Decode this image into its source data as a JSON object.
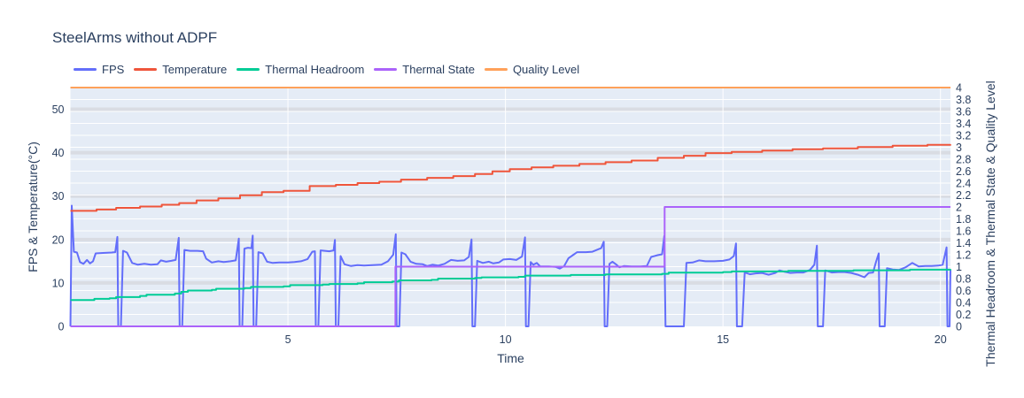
{
  "title": "SteelArms without ADPF",
  "chart_data": {
    "type": "line",
    "title": "SteelArms without ADPF",
    "xlabel": "Time",
    "ylabel_left": "FPS & Temperature(°C)",
    "ylabel_right": "Thermal Headroom & Thermal State & Quality Level",
    "x_range": [
      0,
      20.23
    ],
    "y_left_range": [
      0,
      55
    ],
    "y_right_range": [
      0,
      4
    ],
    "x_ticks": [
      5,
      10,
      15,
      20
    ],
    "y_left_ticks": [
      0,
      10,
      20,
      30,
      40,
      50
    ],
    "y_right_ticks": [
      0,
      0.2,
      0.4,
      0.6,
      0.8,
      1,
      1.2,
      1.4,
      1.6,
      1.8,
      2,
      2.2,
      2.4,
      2.6,
      2.8,
      3,
      3.2,
      3.4,
      3.6,
      3.8,
      4
    ],
    "grid": {
      "plot_bg": "#e5ecf6",
      "minor_line": "#ffffff",
      "major_line": "#d9dce3"
    },
    "legend_position": "top-left-horizontal",
    "series": [
      {
        "name": "FPS",
        "color": "#636efa",
        "axis": "left",
        "step": false,
        "points": [
          [
            0,
            0
          ],
          [
            0.03,
            27.8
          ],
          [
            0.08,
            17.2
          ],
          [
            0.15,
            17.0
          ],
          [
            0.22,
            14.8
          ],
          [
            0.3,
            14.4
          ],
          [
            0.38,
            15.3
          ],
          [
            0.45,
            14.5
          ],
          [
            0.52,
            15.0
          ],
          [
            0.58,
            16.8
          ],
          [
            0.75,
            16.9
          ],
          [
            0.95,
            17.0
          ],
          [
            1.03,
            17.1
          ],
          [
            1.08,
            20.6
          ],
          [
            1.1,
            0
          ],
          [
            1.16,
            0
          ],
          [
            1.21,
            17.4
          ],
          [
            1.3,
            17.0
          ],
          [
            1.42,
            14.6
          ],
          [
            1.55,
            14.2
          ],
          [
            1.7,
            14.4
          ],
          [
            1.85,
            14.2
          ],
          [
            2.0,
            14.3
          ],
          [
            2.08,
            15.2
          ],
          [
            2.2,
            14.9
          ],
          [
            2.32,
            15.1
          ],
          [
            2.42,
            15.3
          ],
          [
            2.49,
            20.4
          ],
          [
            2.51,
            0
          ],
          [
            2.57,
            0
          ],
          [
            2.62,
            17.6
          ],
          [
            2.75,
            17.4
          ],
          [
            2.92,
            17.4
          ],
          [
            3.05,
            17.3
          ],
          [
            3.12,
            15.6
          ],
          [
            3.25,
            14.7
          ],
          [
            3.4,
            15.0
          ],
          [
            3.52,
            14.8
          ],
          [
            3.68,
            15.0
          ],
          [
            3.8,
            15.2
          ],
          [
            3.87,
            20.2
          ],
          [
            3.89,
            0
          ],
          [
            3.95,
            0
          ],
          [
            4.0,
            17.9
          ],
          [
            4.08,
            18.1
          ],
          [
            4.16,
            18.0
          ],
          [
            4.19,
            20.9
          ],
          [
            4.21,
            0
          ],
          [
            4.27,
            0
          ],
          [
            4.32,
            17.1
          ],
          [
            4.42,
            16.8
          ],
          [
            4.52,
            14.9
          ],
          [
            4.65,
            14.6
          ],
          [
            4.8,
            14.7
          ],
          [
            5.0,
            14.7
          ],
          [
            5.15,
            14.8
          ],
          [
            5.3,
            15.0
          ],
          [
            5.45,
            15.5
          ],
          [
            5.56,
            17.2
          ],
          [
            5.62,
            17.3
          ],
          [
            5.64,
            0
          ],
          [
            5.7,
            0
          ],
          [
            5.75,
            17.5
          ],
          [
            5.85,
            17.4
          ],
          [
            5.95,
            17.3
          ],
          [
            6.05,
            17.5
          ],
          [
            6.08,
            19.9
          ],
          [
            6.1,
            0
          ],
          [
            6.16,
            0
          ],
          [
            6.21,
            16.2
          ],
          [
            6.3,
            14.3
          ],
          [
            6.45,
            13.9
          ],
          [
            6.6,
            14.1
          ],
          [
            6.75,
            14.0
          ],
          [
            6.95,
            14.1
          ],
          [
            7.15,
            14.2
          ],
          [
            7.3,
            15.0
          ],
          [
            7.42,
            16.5
          ],
          [
            7.48,
            21.2
          ],
          [
            7.5,
            0
          ],
          [
            7.56,
            0
          ],
          [
            7.61,
            17.0
          ],
          [
            7.7,
            16.6
          ],
          [
            7.82,
            14.9
          ],
          [
            7.95,
            14.4
          ],
          [
            8.1,
            14.3
          ],
          [
            8.2,
            13.9
          ],
          [
            8.32,
            14.2
          ],
          [
            8.45,
            14.0
          ],
          [
            8.6,
            14.4
          ],
          [
            8.75,
            15.3
          ],
          [
            8.9,
            15.1
          ],
          [
            9.05,
            15.2
          ],
          [
            9.16,
            16.0
          ],
          [
            9.22,
            20.0
          ],
          [
            9.24,
            0
          ],
          [
            9.3,
            0
          ],
          [
            9.35,
            15.1
          ],
          [
            9.48,
            14.6
          ],
          [
            9.62,
            14.9
          ],
          [
            9.72,
            14.5
          ],
          [
            9.85,
            14.7
          ],
          [
            9.95,
            15.4
          ],
          [
            10.1,
            15.5
          ],
          [
            10.25,
            15.3
          ],
          [
            10.38,
            16.1
          ],
          [
            10.45,
            20.5
          ],
          [
            10.47,
            0
          ],
          [
            10.53,
            0
          ],
          [
            10.58,
            14.8
          ],
          [
            10.64,
            14.2
          ],
          [
            10.72,
            14.6
          ],
          [
            10.8,
            13.8
          ],
          [
            11.0,
            13.8
          ],
          [
            11.15,
            13.7
          ],
          [
            11.25,
            13.3
          ],
          [
            11.35,
            13.9
          ],
          [
            11.45,
            15.7
          ],
          [
            11.55,
            16.4
          ],
          [
            11.65,
            17.1
          ],
          [
            11.85,
            17.1
          ],
          [
            12.0,
            17.2
          ],
          [
            12.1,
            17.6
          ],
          [
            12.2,
            18.0
          ],
          [
            12.26,
            19.5
          ],
          [
            12.28,
            0
          ],
          [
            12.34,
            0
          ],
          [
            12.39,
            14.4
          ],
          [
            12.46,
            14.9
          ],
          [
            12.54,
            14.3
          ],
          [
            12.62,
            13.6
          ],
          [
            12.72,
            13.9
          ],
          [
            12.9,
            13.8
          ],
          [
            13.1,
            13.8
          ],
          [
            13.25,
            13.9
          ],
          [
            13.35,
            16.0
          ],
          [
            13.5,
            16.4
          ],
          [
            13.6,
            16.6
          ],
          [
            13.65,
            20.8
          ],
          [
            13.68,
            0
          ],
          [
            14.1,
            0
          ],
          [
            14.16,
            14.6
          ],
          [
            14.3,
            14.7
          ],
          [
            14.45,
            15.2
          ],
          [
            14.6,
            15.0
          ],
          [
            14.8,
            15.0
          ],
          [
            15.0,
            15.1
          ],
          [
            15.15,
            15.4
          ],
          [
            15.25,
            16.2
          ],
          [
            15.3,
            19.1
          ],
          [
            15.32,
            0
          ],
          [
            15.44,
            0
          ],
          [
            15.5,
            12.4
          ],
          [
            15.62,
            12.0
          ],
          [
            15.75,
            12.2
          ],
          [
            15.9,
            12.3
          ],
          [
            16.05,
            11.9
          ],
          [
            16.2,
            12.3
          ],
          [
            16.3,
            12.9
          ],
          [
            16.4,
            12.6
          ],
          [
            16.55,
            12.3
          ],
          [
            16.7,
            12.4
          ],
          [
            16.85,
            12.4
          ],
          [
            17.0,
            13.0
          ],
          [
            17.1,
            14.2
          ],
          [
            17.16,
            18.6
          ],
          [
            17.18,
            0
          ],
          [
            17.3,
            0
          ],
          [
            17.35,
            12.9
          ],
          [
            17.5,
            12.4
          ],
          [
            17.65,
            12.5
          ],
          [
            17.8,
            12.5
          ],
          [
            17.95,
            12.3
          ],
          [
            18.1,
            11.9
          ],
          [
            18.25,
            11.3
          ],
          [
            18.35,
            12.3
          ],
          [
            18.45,
            12.4
          ],
          [
            18.52,
            14.9
          ],
          [
            18.58,
            16.8
          ],
          [
            18.6,
            0
          ],
          [
            18.72,
            0
          ],
          [
            18.77,
            13.4
          ],
          [
            18.9,
            13.1
          ],
          [
            19.05,
            13.0
          ],
          [
            19.2,
            13.6
          ],
          [
            19.35,
            14.6
          ],
          [
            19.5,
            13.8
          ],
          [
            19.65,
            13.9
          ],
          [
            19.8,
            13.9
          ],
          [
            19.95,
            14.0
          ],
          [
            20.05,
            14.2
          ],
          [
            20.14,
            18.2
          ],
          [
            20.16,
            0
          ],
          [
            20.21,
            0
          ],
          [
            20.23,
            13.0
          ]
        ]
      },
      {
        "name": "Temperature",
        "color": "#ef553b",
        "axis": "left",
        "step": true,
        "points": [
          [
            0,
            26.6
          ],
          [
            0.6,
            26.9
          ],
          [
            1.05,
            27.3
          ],
          [
            1.6,
            27.6
          ],
          [
            2.1,
            28.0
          ],
          [
            2.5,
            28.4
          ],
          [
            2.9,
            29.0
          ],
          [
            3.4,
            29.5
          ],
          [
            3.9,
            30.2
          ],
          [
            4.4,
            30.9
          ],
          [
            4.9,
            31.2
          ],
          [
            5.5,
            32.3
          ],
          [
            6.1,
            32.6
          ],
          [
            6.6,
            33.0
          ],
          [
            7.1,
            33.3
          ],
          [
            7.6,
            33.8
          ],
          [
            8.2,
            34.2
          ],
          [
            8.8,
            34.6
          ],
          [
            9.3,
            35.1
          ],
          [
            9.7,
            35.7
          ],
          [
            10.1,
            36.2
          ],
          [
            10.6,
            36.6
          ],
          [
            11.1,
            37.0
          ],
          [
            11.7,
            37.4
          ],
          [
            12.3,
            37.8
          ],
          [
            12.9,
            38.2
          ],
          [
            13.5,
            38.8
          ],
          [
            14.1,
            39.3
          ],
          [
            14.6,
            39.9
          ],
          [
            15.2,
            40.2
          ],
          [
            15.9,
            40.5
          ],
          [
            16.6,
            40.8
          ],
          [
            17.3,
            41.0
          ],
          [
            18.1,
            41.3
          ],
          [
            18.9,
            41.6
          ],
          [
            19.7,
            41.8
          ],
          [
            20.23,
            41.9
          ]
        ]
      },
      {
        "name": "Thermal Headroom",
        "color": "#00cc96",
        "axis": "right",
        "step": true,
        "points": [
          [
            0,
            0.44
          ],
          [
            0.55,
            0.46
          ],
          [
            0.9,
            0.47
          ],
          [
            1.05,
            0.49
          ],
          [
            1.6,
            0.51
          ],
          [
            1.75,
            0.53
          ],
          [
            2.4,
            0.55
          ],
          [
            2.55,
            0.58
          ],
          [
            2.7,
            0.6
          ],
          [
            3.25,
            0.61
          ],
          [
            3.35,
            0.63
          ],
          [
            4.0,
            0.64
          ],
          [
            4.15,
            0.66
          ],
          [
            4.9,
            0.67
          ],
          [
            5.05,
            0.69
          ],
          [
            5.8,
            0.7
          ],
          [
            5.95,
            0.71
          ],
          [
            6.6,
            0.72
          ],
          [
            6.75,
            0.74
          ],
          [
            7.4,
            0.75
          ],
          [
            7.55,
            0.77
          ],
          [
            8.3,
            0.78
          ],
          [
            8.45,
            0.8
          ],
          [
            9.3,
            0.81
          ],
          [
            9.45,
            0.82
          ],
          [
            10.3,
            0.83
          ],
          [
            10.45,
            0.85
          ],
          [
            11.5,
            0.86
          ],
          [
            12.3,
            0.87
          ],
          [
            13.6,
            0.88
          ],
          [
            13.75,
            0.9
          ],
          [
            15.0,
            0.91
          ],
          [
            15.2,
            0.92
          ],
          [
            16.5,
            0.93
          ],
          [
            18.0,
            0.94
          ],
          [
            19.3,
            0.95
          ],
          [
            20.23,
            0.96
          ]
        ]
      },
      {
        "name": "Thermal State",
        "color": "#ab63fa",
        "axis": "right",
        "step": true,
        "points": [
          [
            0,
            0
          ],
          [
            7.47,
            1
          ],
          [
            13.66,
            2
          ],
          [
            20.23,
            2
          ]
        ]
      },
      {
        "name": "Quality Level",
        "color": "#ffa15a",
        "axis": "right",
        "step": false,
        "points": [
          [
            0,
            4
          ],
          [
            20.23,
            4
          ]
        ]
      }
    ]
  }
}
